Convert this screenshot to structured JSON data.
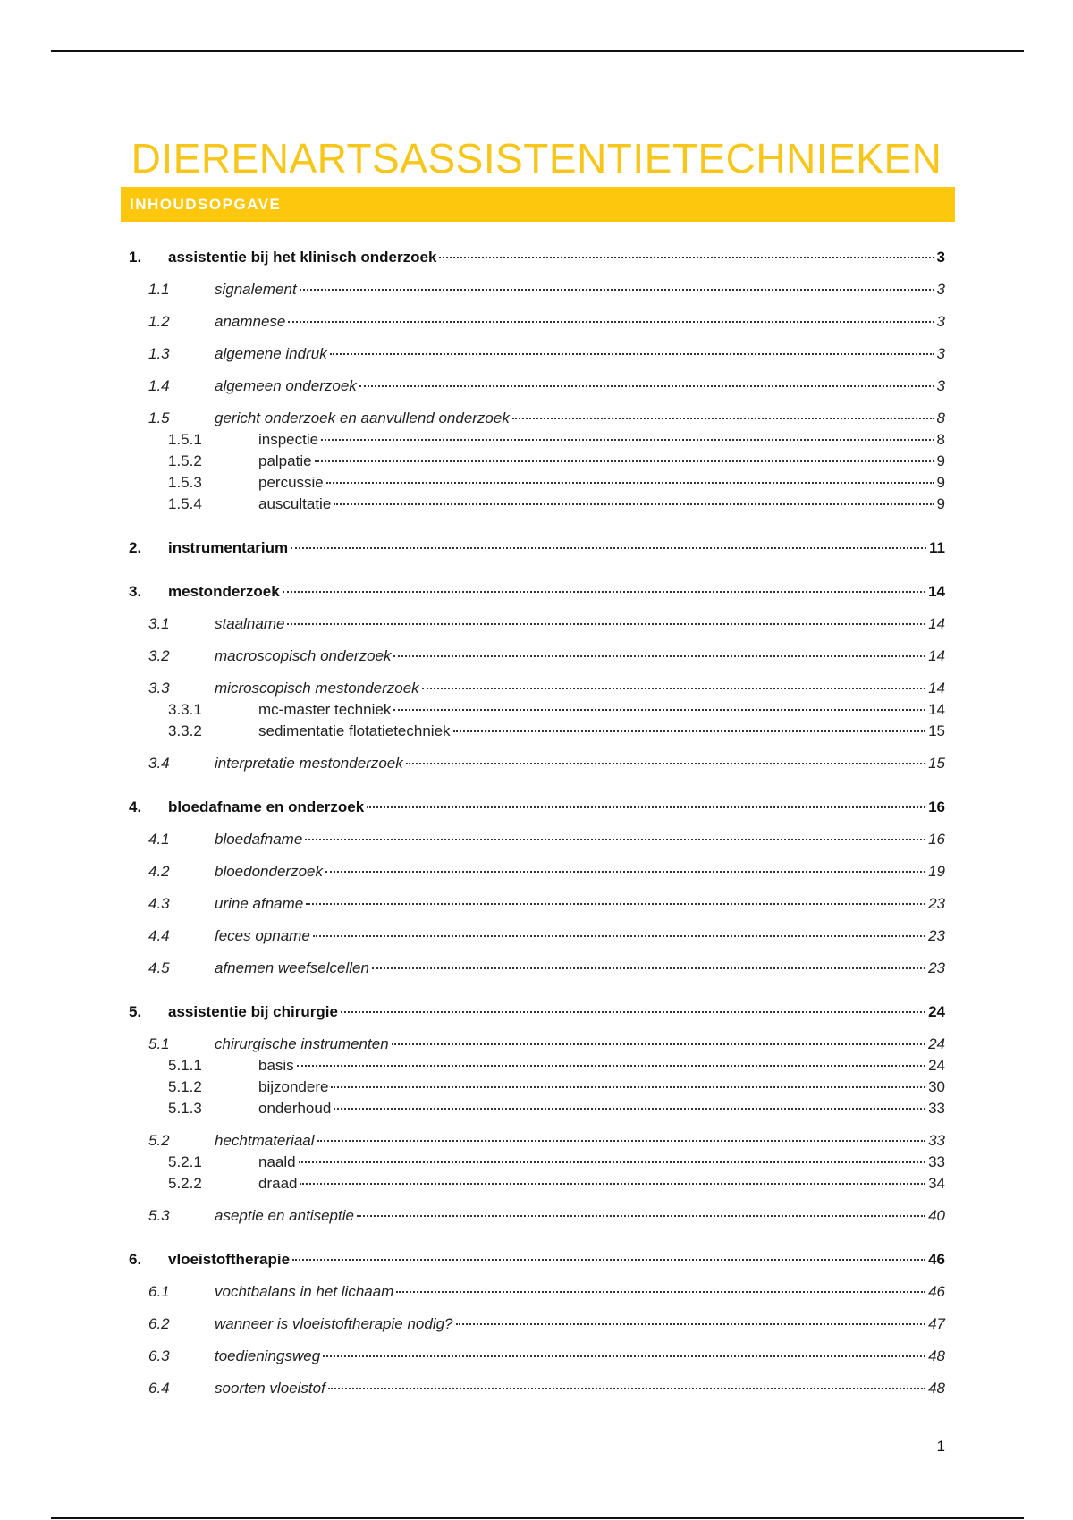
{
  "title": "DIERENARTSASSISTENTIETECHNIEKEN",
  "section_heading": "INHOUDSOPGAVE",
  "colors": {
    "accent": "#fcc70c",
    "title": "#f6c61a"
  },
  "toc": [
    {
      "level": 1,
      "num": "1.",
      "label": "assistentie bij het klinisch onderzoek",
      "page": "3"
    },
    {
      "level": 2,
      "num": "1.1",
      "label": "signalement",
      "page": "3"
    },
    {
      "level": 2,
      "num": "1.2",
      "label": "anamnese",
      "page": "3"
    },
    {
      "level": 2,
      "num": "1.3",
      "label": "algemene indruk",
      "page": "3"
    },
    {
      "level": 2,
      "num": "1.4",
      "label": "algemeen onderzoek",
      "page": "3"
    },
    {
      "level": 2,
      "num": "1.5",
      "label": "gericht onderzoek en aanvullend onderzoek",
      "page": "8"
    },
    {
      "level": 3,
      "num": "1.5.1",
      "label": "inspectie",
      "page": "8"
    },
    {
      "level": 3,
      "num": "1.5.2",
      "label": "palpatie",
      "page": "9"
    },
    {
      "level": 3,
      "num": "1.5.3",
      "label": "percussie",
      "page": "9"
    },
    {
      "level": 3,
      "num": "1.5.4",
      "label": "auscultatie",
      "page": "9"
    },
    {
      "level": 1,
      "num": "2.",
      "label": "instrumentarium",
      "page": "11"
    },
    {
      "level": 1,
      "num": "3.",
      "label": "mestonderzoek",
      "page": "14"
    },
    {
      "level": 2,
      "num": "3.1",
      "label": "staalname",
      "page": "14"
    },
    {
      "level": 2,
      "num": "3.2",
      "label": "macroscopisch onderzoek",
      "page": "14"
    },
    {
      "level": 2,
      "num": "3.3",
      "label": "microscopisch mestonderzoek",
      "page": "14"
    },
    {
      "level": 3,
      "num": "3.3.1",
      "label": "mc-master techniek",
      "page": "14"
    },
    {
      "level": 3,
      "num": "3.3.2",
      "label": "sedimentatie flotatietechniek",
      "page": "15"
    },
    {
      "level": 2,
      "num": "3.4",
      "label": "interpretatie mestonderzoek",
      "page": "15"
    },
    {
      "level": 1,
      "num": "4.",
      "label": "bloedafname en onderzoek",
      "page": "16"
    },
    {
      "level": 2,
      "num": "4.1",
      "label": "bloedafname",
      "page": "16"
    },
    {
      "level": 2,
      "num": "4.2",
      "label": "bloedonderzoek",
      "page": "19"
    },
    {
      "level": 2,
      "num": "4.3",
      "label": "urine afname",
      "page": "23"
    },
    {
      "level": 2,
      "num": "4.4",
      "label": "feces opname",
      "page": "23"
    },
    {
      "level": 2,
      "num": "4.5",
      "label": "afnemen weefselcellen",
      "page": "23"
    },
    {
      "level": 1,
      "num": "5.",
      "label": "assistentie bij chirurgie",
      "page": "24"
    },
    {
      "level": 2,
      "num": "5.1",
      "label": "chirurgische instrumenten",
      "page": "24"
    },
    {
      "level": 3,
      "num": "5.1.1",
      "label": "basis",
      "page": "24"
    },
    {
      "level": 3,
      "num": "5.1.2",
      "label": "bijzondere",
      "page": "30"
    },
    {
      "level": 3,
      "num": "5.1.3",
      "label": "onderhoud",
      "page": "33"
    },
    {
      "level": 2,
      "num": "5.2",
      "label": "hechtmateriaal",
      "page": "33"
    },
    {
      "level": 3,
      "num": "5.2.1",
      "label": "naald",
      "page": "33"
    },
    {
      "level": 3,
      "num": "5.2.2",
      "label": "draad",
      "page": "34"
    },
    {
      "level": 2,
      "num": "5.3",
      "label": "aseptie en antiseptie",
      "page": "40"
    },
    {
      "level": 1,
      "num": "6.",
      "label": "vloeistoftherapie",
      "page": "46"
    },
    {
      "level": 2,
      "num": "6.1",
      "label": "vochtbalans in het lichaam",
      "page": "46"
    },
    {
      "level": 2,
      "num": "6.2",
      "label": "wanneer is vloeistoftherapie nodig?",
      "page": "47"
    },
    {
      "level": 2,
      "num": "6.3",
      "label": "toedieningsweg",
      "page": "48"
    },
    {
      "level": 2,
      "num": "6.4",
      "label": "soorten vloeistof",
      "page": "48"
    }
  ],
  "page_number": "1"
}
